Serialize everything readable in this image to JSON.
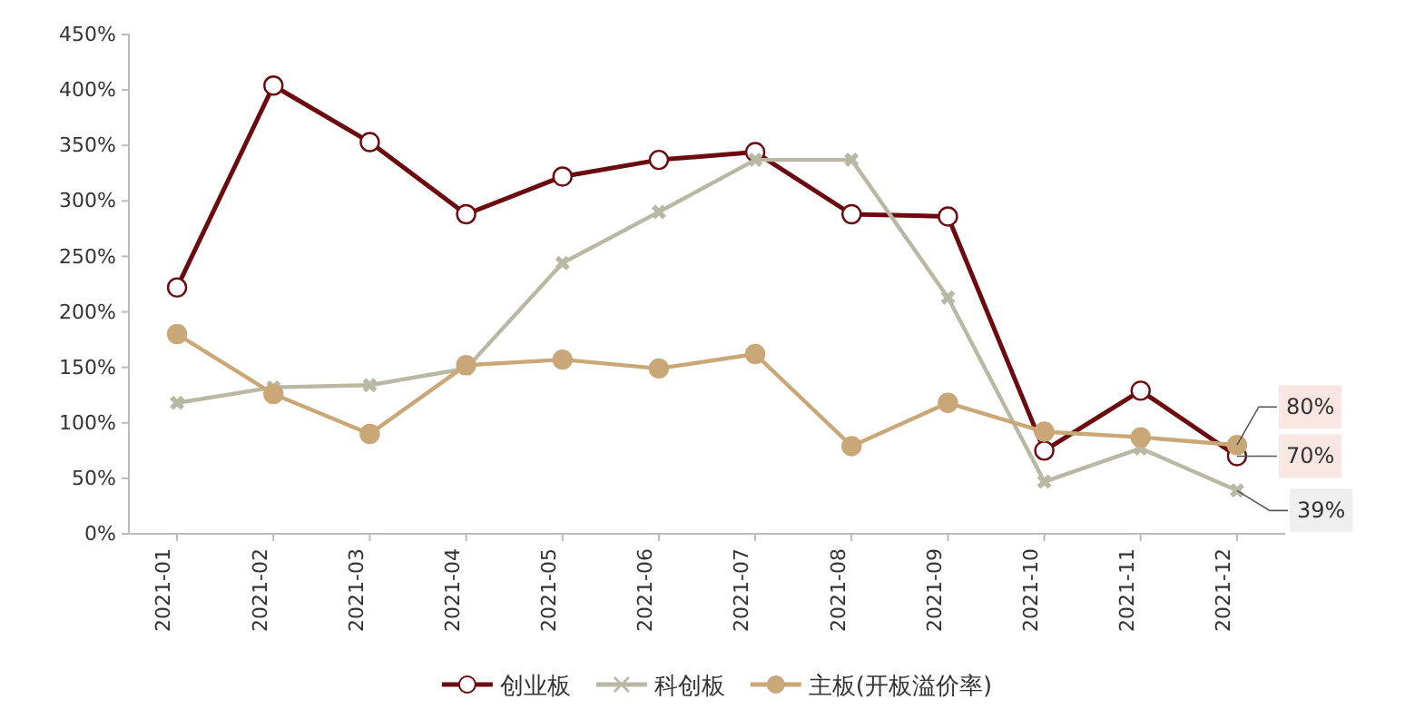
{
  "chart_data": {
    "type": "line",
    "categories": [
      "2021-01",
      "2021-02",
      "2021-03",
      "2021-04",
      "2021-05",
      "2021-06",
      "2021-07",
      "2021-08",
      "2021-09",
      "2021-10",
      "2021-11",
      "2021-12"
    ],
    "ylim": [
      0,
      450
    ],
    "yticks": [
      {
        "value": 0,
        "label": "0%"
      },
      {
        "value": 50,
        "label": "50%"
      },
      {
        "value": 100,
        "label": "100%"
      },
      {
        "value": 150,
        "label": "150%"
      },
      {
        "value": 200,
        "label": "200%"
      },
      {
        "value": 250,
        "label": "250%"
      },
      {
        "value": 300,
        "label": "300%"
      },
      {
        "value": 350,
        "label": "350%"
      },
      {
        "value": 400,
        "label": "400%"
      },
      {
        "value": 450,
        "label": "450%"
      }
    ],
    "grid": false,
    "legend": "bottom",
    "line_style": "solid",
    "series": [
      {
        "name": "创业板",
        "color": "#6b0a0f",
        "marker": "circle",
        "values": [
          222,
          404,
          353,
          288,
          322,
          337,
          344,
          288,
          286,
          75,
          129,
          70
        ],
        "value_labels": [
          null,
          null,
          null,
          null,
          null,
          null,
          null,
          null,
          null,
          null,
          null,
          "70%"
        ]
      },
      {
        "name": "科创板",
        "color": "#b8b8a4",
        "marker": "cross",
        "values": [
          118,
          132,
          134,
          149,
          244,
          290,
          337,
          337,
          213,
          47,
          77,
          39
        ],
        "value_labels": [
          null,
          null,
          null,
          null,
          null,
          null,
          null,
          null,
          null,
          null,
          null,
          "39%"
        ]
      },
      {
        "name": "主板(开板溢价率)",
        "color": "#c9a777",
        "marker": "circle",
        "values": [
          180,
          126,
          90,
          152,
          157,
          149,
          162,
          79,
          118,
          92,
          87,
          80
        ],
        "value_labels": [
          null,
          null,
          null,
          null,
          null,
          null,
          null,
          null,
          null,
          null,
          null,
          "80%"
        ]
      }
    ]
  }
}
